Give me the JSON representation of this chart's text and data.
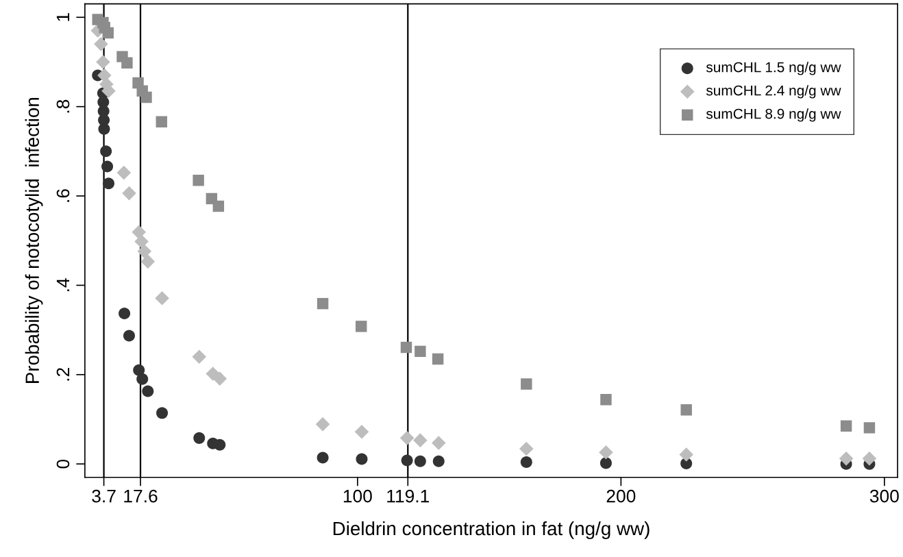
{
  "chart_data": {
    "type": "scatter",
    "xlabel": "Dieldrin concentration in fat (ng/g ww)",
    "ylabel": "Probability of notocotylid  infection",
    "xlim": [
      -3.5,
      305
    ],
    "xticks": [
      3.7,
      17.6,
      100,
      119.1,
      200,
      300
    ],
    "ylim": [
      -0.03,
      1.03
    ],
    "yticks": [
      0,
      {
        "value": 0.2,
        "label": ".2"
      },
      {
        "value": 0.4,
        "label": ".4"
      },
      {
        "value": 0.6,
        "label": ".6"
      },
      {
        "value": 0.8,
        "label": ".8"
      },
      1
    ],
    "grid": false,
    "legend": "top right",
    "ref_lines": [
      {
        "axis": "x",
        "value": 3.7,
        "color": "#000000"
      },
      {
        "axis": "x",
        "value": 17.6,
        "color": "#000000"
      },
      {
        "axis": "x",
        "value": 119.1,
        "color": "#000000"
      }
    ],
    "series": [
      {
        "name": "sumCHL 1.5 ng/g ww",
        "color": "#333333",
        "marker": "circle",
        "x": [
          1.4,
          3.4,
          3.5,
          3.6,
          3.7,
          3.8,
          4.5,
          5.0,
          5.5,
          11.5,
          13.3,
          17.0,
          18.3,
          20.4,
          25.8,
          39.9,
          45.1,
          47.7,
          86.8,
          101.6,
          118.8,
          123.8,
          130.8,
          164.1,
          194.3,
          224.8,
          285.5,
          294.3
        ],
        "values": [
          0.87,
          0.83,
          0.81,
          0.79,
          0.77,
          0.75,
          0.7,
          0.666,
          0.628,
          0.337,
          0.287,
          0.21,
          0.19,
          0.163,
          0.114,
          0.058,
          0.046,
          0.043,
          0.014,
          0.011,
          0.008,
          0.006,
          0.006,
          0.004,
          0.002,
          0.001,
          0,
          0
        ]
      },
      {
        "name": "sumCHL 2.4 ng/g ww",
        "color": "#bdbdbd",
        "marker": "diamond",
        "x": [
          1.4,
          2.6,
          3.4,
          3.9,
          4.7,
          5.5,
          11.3,
          13.3,
          17.0,
          18.0,
          19.1,
          20.4,
          25.8,
          39.9,
          45.1,
          47.7,
          86.8,
          101.6,
          118.8,
          123.8,
          130.8,
          164.1,
          194.3,
          224.8,
          285.5,
          294.3
        ],
        "values": [
          0.97,
          0.94,
          0.9,
          0.87,
          0.85,
          0.835,
          0.652,
          0.606,
          0.519,
          0.498,
          0.476,
          0.453,
          0.371,
          0.24,
          0.202,
          0.191,
          0.089,
          0.072,
          0.058,
          0.053,
          0.047,
          0.034,
          0.026,
          0.021,
          0.012,
          0.012
        ]
      },
      {
        "name": "sumCHL 8.9 ng/g ww",
        "color": "#8c8c8c",
        "marker": "square",
        "x": [
          1.4,
          3.4,
          4.0,
          5.3,
          10.7,
          12.5,
          16.7,
          18.3,
          19.8,
          25.6,
          39.6,
          44.6,
          47.2,
          86.8,
          101.4,
          118.5,
          123.8,
          130.5,
          164.1,
          194.3,
          224.8,
          285.5,
          294.3
        ],
        "values": [
          0.995,
          0.988,
          0.977,
          0.965,
          0.912,
          0.898,
          0.853,
          0.835,
          0.821,
          0.766,
          0.635,
          0.594,
          0.577,
          0.359,
          0.308,
          0.261,
          0.252,
          0.235,
          0.179,
          0.144,
          0.121,
          0.085,
          0.081
        ]
      }
    ]
  }
}
